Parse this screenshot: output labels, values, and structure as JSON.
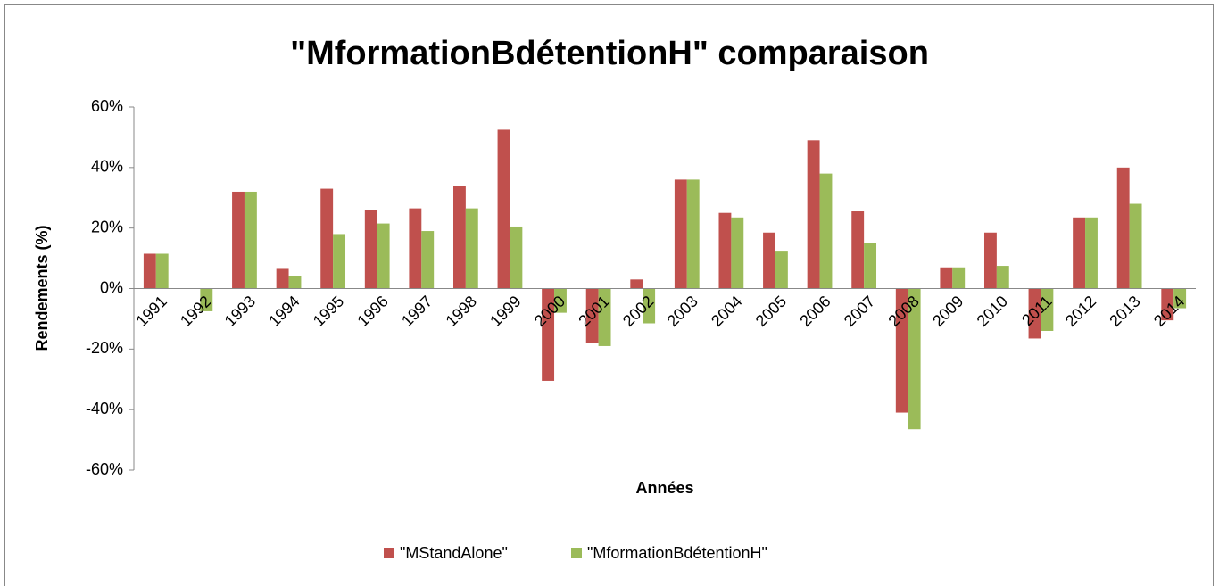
{
  "chart_data": {
    "type": "bar",
    "title": "\"MformationBdétentionH\" comparaison",
    "x_label": "Années",
    "y_label": "Rendements (%)",
    "categories": [
      "1991",
      "1992",
      "1993",
      "1994",
      "1995",
      "1996",
      "1997",
      "1998",
      "1999",
      "2000",
      "2001",
      "2002",
      "2003",
      "2004",
      "2005",
      "2006",
      "2007",
      "2008",
      "2009",
      "2010",
      "2011",
      "2012",
      "2013",
      "2014"
    ],
    "series": [
      {
        "name": "\"MStandAlone\"",
        "color": "#c0504d",
        "values": [
          11.5,
          0,
          32,
          6.5,
          33,
          26,
          26.5,
          34,
          52.5,
          -30.5,
          -18,
          3,
          36,
          25,
          18.5,
          49,
          25.5,
          -41,
          7,
          18.5,
          -16.5,
          23.5,
          40,
          -10.5
        ]
      },
      {
        "name": "\"MformationBdétentionH\"",
        "color": "#9bbb59",
        "values": [
          11.5,
          -7.5,
          32,
          4,
          18,
          21.5,
          19,
          26.5,
          20.5,
          -8,
          -19,
          -11.5,
          36,
          23.5,
          12.5,
          38,
          15,
          -46.5,
          7,
          7.5,
          -14,
          23.5,
          28,
          -6.5
        ]
      }
    ],
    "ylim": [
      -60,
      60
    ],
    "yticks": [
      {
        "value": -60,
        "label": "-60%"
      },
      {
        "value": -40,
        "label": "-40%"
      },
      {
        "value": -20,
        "label": "-20%"
      },
      {
        "value": 0,
        "label": "0%"
      },
      {
        "value": 20,
        "label": "20%"
      },
      {
        "value": 40,
        "label": "40%"
      },
      {
        "value": 60,
        "label": "60%"
      }
    ],
    "legend": "bottom"
  }
}
